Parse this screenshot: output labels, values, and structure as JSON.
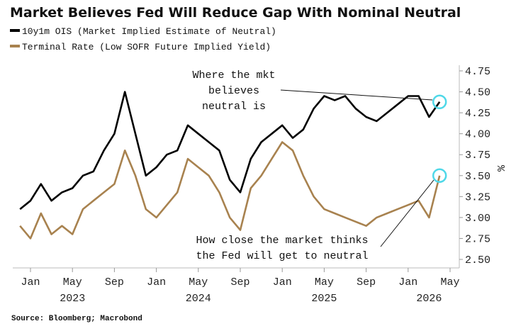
{
  "chart_data": {
    "type": "line",
    "title": "Market Believes Fed Will Reduce Gap With Nominal Neutral",
    "ylabel": "%",
    "ylim": [
      2.5,
      4.75
    ],
    "yticks": [
      "4.75",
      "4.50",
      "4.25",
      "4.00",
      "3.75",
      "3.50",
      "3.25",
      "3.00",
      "2.75",
      "2.50"
    ],
    "xticks": [
      "Jan",
      "May",
      "Sep",
      "Jan",
      "May",
      "Sep",
      "Jan",
      "May",
      "Sep",
      "Jan",
      "May"
    ],
    "xyears": [
      "2023",
      "2024",
      "2025",
      "2026"
    ],
    "x": [
      "2022-12",
      "2023-01",
      "2023-02",
      "2023-03",
      "2023-04",
      "2023-05",
      "2023-06",
      "2023-07",
      "2023-08",
      "2023-09",
      "2023-10",
      "2023-11",
      "2023-12",
      "2024-01",
      "2024-02",
      "2024-03",
      "2024-04",
      "2024-05",
      "2024-06",
      "2024-07",
      "2024-08",
      "2024-09",
      "2024-10",
      "2024-11",
      "2024-12",
      "2025-01",
      "2025-02",
      "2025-03",
      "2025-04",
      "2025-05",
      "2025-06",
      "2025-07",
      "2025-08",
      "2025-09",
      "2025-10",
      "2025-11",
      "2025-12",
      "2026-01",
      "2026-02",
      "2026-03",
      "2026-04"
    ],
    "series": [
      {
        "name": "10y1m OIS (Market Implied Estimate of Neutral)",
        "color": "#000000",
        "values": [
          3.1,
          3.2,
          3.4,
          3.2,
          3.3,
          3.35,
          3.5,
          3.55,
          3.8,
          4.0,
          4.5,
          4.0,
          3.5,
          3.6,
          3.75,
          3.8,
          4.1,
          4.0,
          3.9,
          3.8,
          3.45,
          3.3,
          3.7,
          3.9,
          4.0,
          4.1,
          3.95,
          4.05,
          4.3,
          4.45,
          4.4,
          4.45,
          4.3,
          4.2,
          4.15,
          4.25,
          4.35,
          4.45,
          4.45,
          4.2,
          4.38
        ]
      },
      {
        "name": "Terminal Rate (Low SOFR Future Implied Yield)",
        "color": "#a8824f",
        "values": [
          2.9,
          2.75,
          3.05,
          2.8,
          2.9,
          2.8,
          3.1,
          3.2,
          3.3,
          3.4,
          3.8,
          3.5,
          3.1,
          3.0,
          3.15,
          3.3,
          3.7,
          3.6,
          3.5,
          3.3,
          3.0,
          2.85,
          3.35,
          3.5,
          3.7,
          3.9,
          3.8,
          3.5,
          3.25,
          3.1,
          3.05,
          3.0,
          2.95,
          2.9,
          3.0,
          3.05,
          3.1,
          3.15,
          3.2,
          3.0,
          3.5
        ]
      }
    ],
    "annotations": [
      {
        "lines": [
          "Where the mkt",
          "believes",
          "neutral is"
        ]
      },
      {
        "lines": [
          "How close the market thinks",
          "the Fed will get to neutral"
        ]
      }
    ],
    "highlight_color": "#4fd8e8",
    "grid": false,
    "legend": "top-left"
  },
  "source": "Source: Bloomberg; Macrobond"
}
